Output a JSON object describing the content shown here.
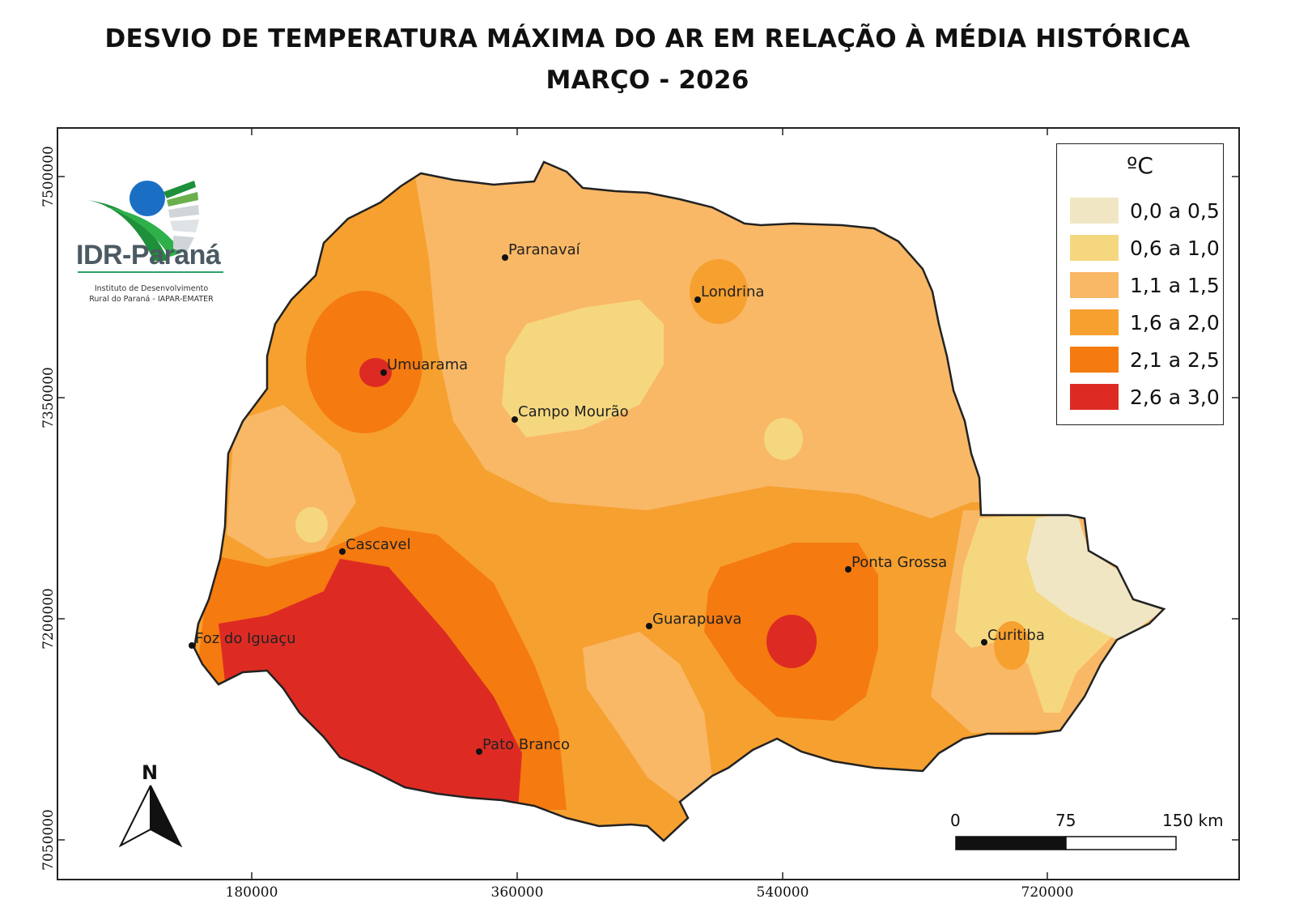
{
  "title_line1": "DESVIO DE TEMPERATURA MÁXIMA DO AR EM RELAÇÃO À MÉDIA HISTÓRICA",
  "title_line2": "MARÇO - 2026",
  "logo": {
    "name": "IDR-Paraná",
    "subtitle_line1": "Instituto de Desenvolvimento",
    "subtitle_line2": "Rural do Paraná - IAPAR-EMATER"
  },
  "axes": {
    "y_ticks": [
      "7500000",
      "7350000",
      "7200000",
      "7050000"
    ],
    "x_ticks": [
      "180000",
      "360000",
      "540000",
      "720000"
    ]
  },
  "legend": {
    "title": "ºC",
    "items": [
      {
        "label": "0,0 a 0,5",
        "color": "#f0e6c4"
      },
      {
        "label": "0,6 a 1,0",
        "color": "#f5d77f"
      },
      {
        "label": "1,1 a 1,5",
        "color": "#f9b866"
      },
      {
        "label": "1,6 a 2,0",
        "color": "#f6a02f"
      },
      {
        "label": "2,1 a 2,5",
        "color": "#f57a0f"
      },
      {
        "label": "2,6 a 3,0",
        "color": "#dd2b24"
      }
    ]
  },
  "cities": [
    {
      "name": "Paranavaí"
    },
    {
      "name": "Londrina"
    },
    {
      "name": "Umuarama"
    },
    {
      "name": "Campo Mourão"
    },
    {
      "name": "Cascavel"
    },
    {
      "name": "Ponta Grossa"
    },
    {
      "name": "Guarapuava"
    },
    {
      "name": "Foz do Iguaçu"
    },
    {
      "name": "Curitiba"
    },
    {
      "name": "Pato Branco"
    }
  ],
  "north_label": "N",
  "scale_bar": {
    "labels": [
      "0",
      "75",
      "150 km"
    ]
  }
}
